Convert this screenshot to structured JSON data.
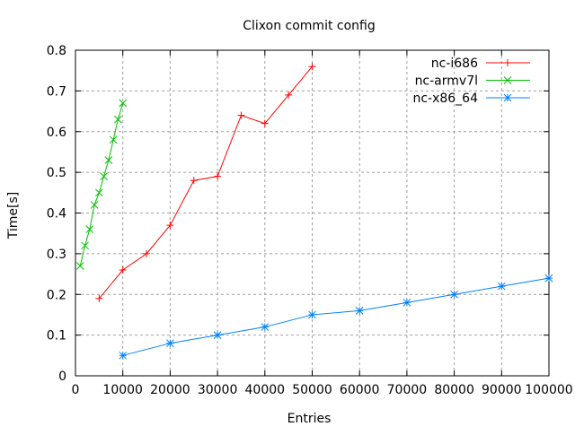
{
  "chart_data": {
    "type": "line",
    "title": "Clixon commit config",
    "xlabel": "Entries",
    "ylabel": "Time[s]",
    "xlim": [
      0,
      100000
    ],
    "ylim": [
      0,
      0.8
    ],
    "xticks": [
      0,
      10000,
      20000,
      30000,
      40000,
      50000,
      60000,
      70000,
      80000,
      90000,
      100000
    ],
    "yticks": [
      0,
      0.1,
      0.2,
      0.3,
      0.4,
      0.5,
      0.6,
      0.7,
      0.8
    ],
    "xtick_labels": [
      "0",
      "10000",
      "20000",
      "30000",
      "40000",
      "50000",
      "60000",
      "70000",
      "80000",
      "90000",
      "100000"
    ],
    "ytick_labels": [
      "0",
      "0.1",
      "0.2",
      "0.3",
      "0.4",
      "0.5",
      "0.6",
      "0.7",
      "0.8"
    ],
    "grid": true,
    "legend_placement": "top-right",
    "series": [
      {
        "name": "nc-i686",
        "color": "#ff0000",
        "marker": "plus",
        "x": [
          5000,
          10000,
          15000,
          20000,
          25000,
          30000,
          35000,
          40000,
          45000,
          50000
        ],
        "y": [
          0.19,
          0.26,
          0.3,
          0.37,
          0.48,
          0.49,
          0.64,
          0.62,
          0.69,
          0.76
        ]
      },
      {
        "name": "nc-armv7l",
        "color": "#00c000",
        "marker": "cross",
        "x": [
          1000,
          2000,
          3000,
          4000,
          5000,
          6000,
          7000,
          8000,
          9000,
          10000
        ],
        "y": [
          0.27,
          0.32,
          0.36,
          0.42,
          0.45,
          0.49,
          0.53,
          0.58,
          0.63,
          0.67
        ]
      },
      {
        "name": "nc-x86_64",
        "color": "#0080ff",
        "marker": "star",
        "x": [
          10000,
          20000,
          30000,
          40000,
          50000,
          60000,
          70000,
          80000,
          90000,
          100000
        ],
        "y": [
          0.05,
          0.08,
          0.1,
          0.12,
          0.15,
          0.16,
          0.18,
          0.2,
          0.22,
          0.24
        ]
      }
    ]
  }
}
